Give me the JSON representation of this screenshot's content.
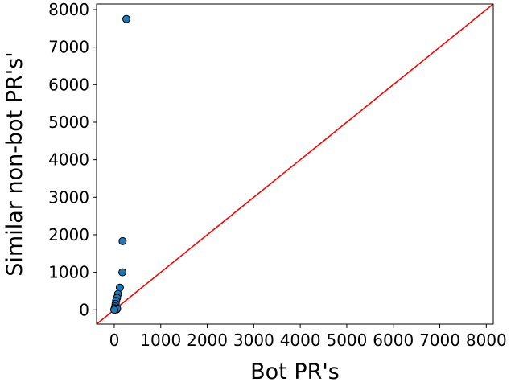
{
  "chart_data": {
    "type": "scatter",
    "xlabel": "Bot PR's",
    "ylabel": "Similar non-bot PR's'",
    "xlim": [
      -380,
      8150
    ],
    "ylim": [
      -380,
      8150
    ],
    "xticks": [
      0,
      1000,
      2000,
      3000,
      4000,
      5000,
      6000,
      7000,
      8000
    ],
    "yticks": [
      0,
      1000,
      2000,
      3000,
      4000,
      5000,
      6000,
      7000,
      8000
    ],
    "xtick_labels": [
      "0",
      "1000",
      "2000",
      "3000",
      "4000",
      "5000",
      "6000",
      "7000",
      "8000"
    ],
    "ytick_labels": [
      "0",
      "1000",
      "2000",
      "3000",
      "4000",
      "5000",
      "6000",
      "7000",
      "8000"
    ],
    "points": [
      {
        "x": 260,
        "y": 7750
      },
      {
        "x": 180,
        "y": 1830
      },
      {
        "x": 175,
        "y": 1000
      },
      {
        "x": 120,
        "y": 590
      },
      {
        "x": 80,
        "y": 420
      },
      {
        "x": 60,
        "y": 320
      },
      {
        "x": 40,
        "y": 240
      },
      {
        "x": 30,
        "y": 160
      },
      {
        "x": 20,
        "y": 90
      },
      {
        "x": 10,
        "y": 40
      },
      {
        "x": 5,
        "y": 10
      },
      {
        "x": 30,
        "y": 20
      },
      {
        "x": 50,
        "y": 10
      },
      {
        "x": 60,
        "y": 30
      },
      {
        "x": 0,
        "y": 0
      }
    ],
    "reference_line": {
      "from": [
        -380,
        -380
      ],
      "to": [
        8150,
        8150
      ],
      "color": "#ff0000"
    },
    "marker_color": "#1f77b4",
    "marker_edge": "#000000",
    "grid": false
  }
}
